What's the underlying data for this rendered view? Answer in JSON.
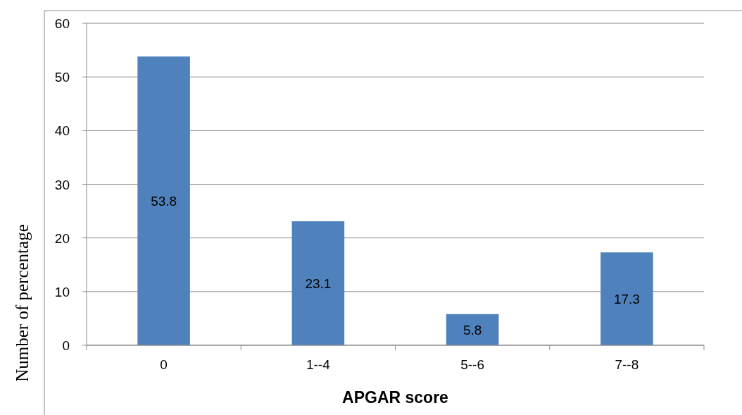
{
  "chart_data": {
    "type": "bar",
    "xlabel": "APGAR score",
    "ylabel": "Number of percentage",
    "categories": [
      "0",
      "1--4",
      "5--6",
      "7--8"
    ],
    "values": [
      53.8,
      23.1,
      5.8,
      17.3
    ],
    "color": "#4f81bd",
    "ylim": [
      0,
      60
    ],
    "yticks": [
      0,
      10,
      20,
      30,
      40,
      50,
      60
    ],
    "grid": "y",
    "data_labels": true
  }
}
